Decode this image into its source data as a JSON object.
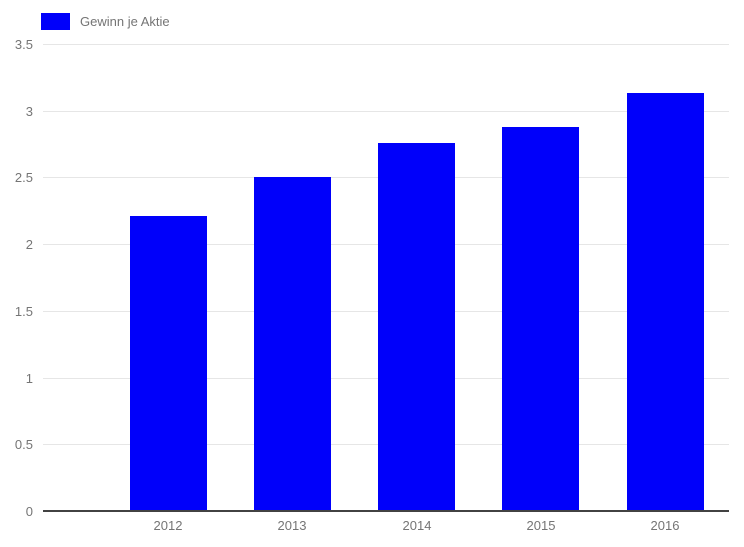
{
  "legend": {
    "label": "Gewinn je Aktie"
  },
  "chart_data": {
    "type": "bar",
    "title": "",
    "categories": [
      "2012",
      "2013",
      "2014",
      "2015",
      "2016"
    ],
    "series": [
      {
        "name": "Gewinn je Aktie",
        "color": "#0000fa",
        "values": [
          2.21,
          2.5,
          2.76,
          2.88,
          3.13
        ]
      }
    ],
    "xlabel": "",
    "ylabel": "",
    "ylim": [
      0,
      3.5
    ],
    "ytick_step": 0.5,
    "ytick_labels": [
      "0",
      "0.5",
      "1",
      "1.5",
      "2",
      "2.5",
      "3",
      "3.5"
    ],
    "grid": true,
    "legend_position": "top-left"
  },
  "colors": {
    "bar": "#0000fa",
    "gridline": "#e6e6e6",
    "baseline": "#424242",
    "axis_label": "#757575",
    "background": "#ffffff"
  }
}
